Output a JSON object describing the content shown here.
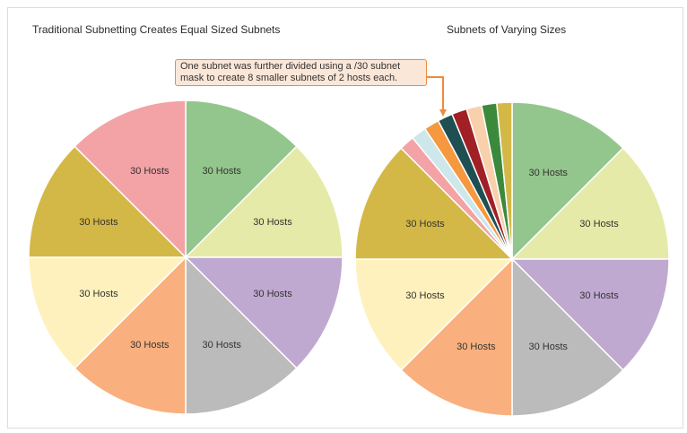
{
  "left_chart": {
    "title": "Traditional Subnetting Creates Equal Sized Subnets",
    "slices": [
      {
        "label": "30 Hosts",
        "value": 30,
        "color": "#93c68c"
      },
      {
        "label": "30 Hosts",
        "value": 30,
        "color": "#e5eaa8"
      },
      {
        "label": "30 Hosts",
        "value": 30,
        "color": "#c0a9d1"
      },
      {
        "label": "30 Hosts",
        "value": 30,
        "color": "#bbbbbb"
      },
      {
        "label": "30 Hosts",
        "value": 30,
        "color": "#f9b07e"
      },
      {
        "label": "30 Hosts",
        "value": 30,
        "color": "#fef1bd"
      },
      {
        "label": "30 Hosts",
        "value": 30,
        "color": "#d4b847"
      },
      {
        "label": "30 Hosts",
        "value": 30,
        "color": "#f3a2a6"
      }
    ]
  },
  "right_chart": {
    "title": "Subnets of Varying Sizes",
    "slices": [
      {
        "label": "30 Hosts",
        "value": 30,
        "color": "#93c68c"
      },
      {
        "label": "30 Hosts",
        "value": 30,
        "color": "#e5eaa8"
      },
      {
        "label": "30 Hosts",
        "value": 30,
        "color": "#c0a9d1"
      },
      {
        "label": "30 Hosts",
        "value": 30,
        "color": "#bbbbbb"
      },
      {
        "label": "30 Hosts",
        "value": 30,
        "color": "#f9b07e"
      },
      {
        "label": "30 Hosts",
        "value": 30,
        "color": "#fef1bd"
      },
      {
        "label": "30 Hosts",
        "value": 30,
        "color": "#d4b847"
      },
      {
        "label": "",
        "value": 3.75,
        "color": "#f3a2a6"
      },
      {
        "label": "",
        "value": 3.75,
        "color": "#cde7ea"
      },
      {
        "label": "",
        "value": 3.75,
        "color": "#f5983f"
      },
      {
        "label": "",
        "value": 3.75,
        "color": "#1e4f53"
      },
      {
        "label": "",
        "value": 3.75,
        "color": "#a02026"
      },
      {
        "label": "",
        "value": 3.75,
        "color": "#f8d0ac"
      },
      {
        "label": "",
        "value": 3.75,
        "color": "#3b8a3b"
      },
      {
        "label": "",
        "value": 3.75,
        "color": "#d4b847"
      }
    ]
  },
  "callout": {
    "text": "One subnet was further divided using a /30 subnet mask to create 8 smaller subnets of 2 hosts each.",
    "border_color": "#f08a3c",
    "fill_color": "#fbe7d8"
  }
}
